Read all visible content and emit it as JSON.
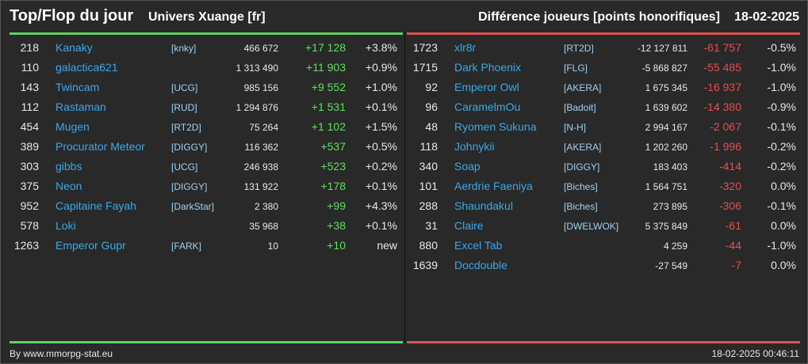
{
  "header": {
    "title": "Top/Flop du jour",
    "universe": "Univers Xuange [fr]",
    "metric": "Différence joueurs [points honorifiques]",
    "date": "18-02-2025"
  },
  "colors": {
    "accent_top": "#5fd35f",
    "accent_flop": "#e05050",
    "name_link": "#3aa8e8",
    "background": "#292929"
  },
  "top": [
    {
      "rank": "218",
      "name": "Kanaky",
      "tag": "[knky]",
      "points": "466 672",
      "diff": "+17 128",
      "pct": "+3.8%"
    },
    {
      "rank": "110",
      "name": "galactica621",
      "tag": "",
      "points": "1 313 490",
      "diff": "+11 903",
      "pct": "+0.9%"
    },
    {
      "rank": "143",
      "name": "Twincam",
      "tag": "[UCG]",
      "points": "985 156",
      "diff": "+9 552",
      "pct": "+1.0%"
    },
    {
      "rank": "112",
      "name": "Rastaman",
      "tag": "[RUD]",
      "points": "1 294 876",
      "diff": "+1 531",
      "pct": "+0.1%"
    },
    {
      "rank": "454",
      "name": "Mugen",
      "tag": "[RT2D]",
      "points": "75 264",
      "diff": "+1 102",
      "pct": "+1.5%"
    },
    {
      "rank": "389",
      "name": "Procurator Meteor",
      "tag": "[DIGGY]",
      "points": "116 362",
      "diff": "+537",
      "pct": "+0.5%"
    },
    {
      "rank": "303",
      "name": "gibbs",
      "tag": "[UCG]",
      "points": "246 938",
      "diff": "+523",
      "pct": "+0.2%"
    },
    {
      "rank": "375",
      "name": "Neon",
      "tag": "[DIGGY]",
      "points": "131 922",
      "diff": "+178",
      "pct": "+0.1%"
    },
    {
      "rank": "952",
      "name": "Capitaine Fayah",
      "tag": "[DarkStar]",
      "points": "2 380",
      "diff": "+99",
      "pct": "+4.3%"
    },
    {
      "rank": "578",
      "name": "Loki",
      "tag": "",
      "points": "35 968",
      "diff": "+38",
      "pct": "+0.1%"
    },
    {
      "rank": "1263",
      "name": "Emperor Gupr",
      "tag": "[FARK]",
      "points": "10",
      "diff": "+10",
      "pct": "new"
    }
  ],
  "flop": [
    {
      "rank": "1723",
      "name": "xlr8r",
      "tag": "[RT2D]",
      "points": "-12 127 811",
      "diff": "-61 757",
      "pct": "-0.5%"
    },
    {
      "rank": "1715",
      "name": "Dark Phoenix",
      "tag": "[FLG]",
      "points": "-5 868 827",
      "diff": "-55 485",
      "pct": "-1.0%"
    },
    {
      "rank": "92",
      "name": "Emperor Owl",
      "tag": "[AKERA]",
      "points": "1 675 345",
      "diff": "-16 937",
      "pct": "-1.0%"
    },
    {
      "rank": "96",
      "name": "CaramelmOu",
      "tag": "[Badoit]",
      "points": "1 639 602",
      "diff": "-14 380",
      "pct": "-0.9%"
    },
    {
      "rank": "48",
      "name": "Ryomen Sukuna",
      "tag": "[N-H]",
      "points": "2 994 167",
      "diff": "-2 067",
      "pct": "-0.1%"
    },
    {
      "rank": "118",
      "name": "Johnykii",
      "tag": "[AKERA]",
      "points": "1 202 260",
      "diff": "-1 996",
      "pct": "-0.2%"
    },
    {
      "rank": "340",
      "name": "Soap",
      "tag": "[DIGGY]",
      "points": "183 403",
      "diff": "-414",
      "pct": "-0.2%"
    },
    {
      "rank": "101",
      "name": "Aerdrie Faeniya",
      "tag": "[Biches]",
      "points": "1 564 751",
      "diff": "-320",
      "pct": "0.0%"
    },
    {
      "rank": "288",
      "name": "Shaundakul",
      "tag": "[Biches]",
      "points": "273 895",
      "diff": "-306",
      "pct": "-0.1%"
    },
    {
      "rank": "31",
      "name": "Claire",
      "tag": "[DWELWOK]",
      "points": "5 375 849",
      "diff": "-61",
      "pct": "0.0%"
    },
    {
      "rank": "880",
      "name": "Excel Tab",
      "tag": "",
      "points": "4 259",
      "diff": "-44",
      "pct": "-1.0%"
    },
    {
      "rank": "1639",
      "name": "Docdouble",
      "tag": "",
      "points": "-27 549",
      "diff": "-7",
      "pct": "0.0%"
    }
  ],
  "footer": {
    "credit": "By www.mmorpg-stat.eu",
    "timestamp": "18-02-2025 00:46:11"
  }
}
